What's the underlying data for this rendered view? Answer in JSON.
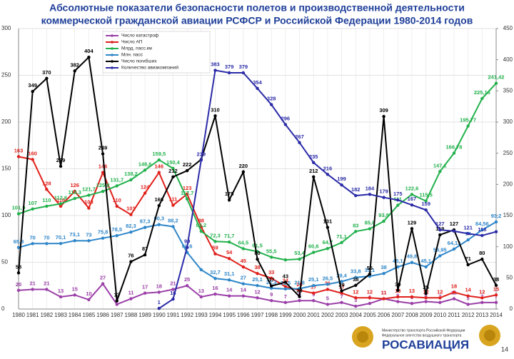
{
  "chart_data": {
    "type": "line",
    "title": [
      "Абсолютные показатели безопасности полетов и производственной деятельности",
      "коммерческой гражданской авиации РСФСР и Российской Федерации 1980-2014 годов"
    ],
    "categories": [
      "1980",
      "1981",
      "1982",
      "1983",
      "1984",
      "1985",
      "1986",
      "1987",
      "1988",
      "1989",
      "1990",
      "1991",
      "1992",
      "1993",
      "1994",
      "1995",
      "1996",
      "1997",
      "1998",
      "1999",
      "2000",
      "2001",
      "2002",
      "2003",
      "2004",
      "2005",
      "2006",
      "2007",
      "2008",
      "2009",
      "2010",
      "2011",
      "2012",
      "2013",
      "2014"
    ],
    "ylim": [
      0,
      300
    ],
    "yticks": [
      0,
      50,
      100,
      150,
      200,
      250,
      300
    ],
    "y2lim": [
      0,
      450
    ],
    "y2ticks": [
      0,
      50,
      100,
      150,
      200,
      250,
      300,
      350,
      400,
      450
    ],
    "grid": true,
    "legend": "upper left",
    "series": [
      {
        "name": "Число катастроф",
        "color": "#9b3fa8",
        "values": [
          20,
          21,
          21,
          13,
          15,
          10,
          27,
          5,
          11,
          17,
          18,
          21,
          25,
          13,
          16,
          14,
          14,
          12,
          9,
          7,
          9,
          9,
          5,
          7,
          3,
          6,
          11,
          8,
          6,
          8,
          7,
          11,
          5,
          7,
          7
        ]
      },
      {
        "name": "Число АП",
        "color": "#e0201b",
        "values": [
          163,
          160,
          128,
          110,
          126,
          108,
          146,
          110,
          101,
          124,
          146,
          111,
          123,
          88,
          59,
          54,
          45,
          38,
          33,
          24,
          20,
          17,
          21,
          17,
          12,
          12,
          11,
          13,
          13,
          12,
          12,
          18,
          14,
          12,
          15
        ]
      },
      {
        "name": "Млрд. пасс.км",
        "color": "#22b14c",
        "values": [
          101.9,
          107,
          110,
          112.6,
          118.3,
          121.7,
          125.8,
          131.7,
          138.2,
          148.6,
          159.5,
          150.4,
          117.7,
          83.2,
          72.3,
          71.7,
          64.5,
          61.5,
          55.5,
          52.6,
          53.4,
          60.6,
          64.7,
          71.1,
          83,
          85.8,
          93.9,
          111,
          122.6,
          115.5,
          147.1,
          166.78,
          195.77,
          225.16,
          241.42
        ],
        "value_labels": [
          "101,9",
          "107",
          "110",
          "112,6",
          "118,3",
          "121,7",
          "125,8",
          "131,7",
          "138,2",
          "148,6",
          "159,5",
          "150,4",
          "117,7",
          "83,2",
          "72,3",
          "71,7",
          "64,5",
          "61,5",
          "55,5",
          null,
          "53,4",
          "60,6",
          "64,7",
          "71,1",
          "83",
          "85,8",
          "93,9",
          "111",
          "122,6",
          "115,5",
          "147,1",
          "166,78",
          "195,77",
          "225,16",
          "241,42"
        ]
      },
      {
        "name": "Млн. пасс",
        "color": "#2e86c9",
        "values": [
          65.8,
          70,
          70,
          70.1,
          73.1,
          73,
          75.8,
          78.5,
          82.3,
          87.3,
          90.3,
          88.2,
          60.6,
          42,
          32.7,
          31.1,
          27,
          25.1,
          22.3,
          21.5,
          21.8,
          25.1,
          26.5,
          29.4,
          33.8,
          35.1,
          38,
          45.1,
          49.8,
          45.1,
          56.95,
          64.13,
          74,
          84.56,
          93.2
        ],
        "value_labels": [
          "65,8",
          "70",
          "70",
          "70,1",
          "73,1",
          "73",
          "75,8",
          "78,5",
          "82,3",
          "87,3",
          "90,3",
          "88,2",
          "60,6",
          null,
          "32,7",
          "31,1",
          "27",
          "25,1",
          "22,3",
          "21,5",
          "21,8",
          "25,1",
          "26,5",
          "29,4",
          "33,8",
          "35,1",
          "38",
          "45,1",
          "49,8",
          "45,1",
          "56,95",
          "64,13",
          "74",
          "84,56",
          "93,2"
        ]
      },
      {
        "name": "Число погибших",
        "color": "#000000",
        "axis": "y2",
        "values": [
          58,
          349,
          370,
          229,
          382,
          404,
          249,
          13,
          76,
          87,
          166,
          212,
          222,
          240,
          310,
          175,
          220,
          80,
          37,
          43,
          20,
          212,
          131,
          29,
          38,
          56,
          309,
          30,
          129,
          25,
          119,
          127,
          71,
          80,
          38
        ],
        "value_labels": [
          "58",
          "349",
          "370",
          "229",
          "382",
          "404",
          "249",
          "13",
          "76",
          "87",
          "166",
          "212",
          "222",
          null,
          "310",
          "175",
          "220",
          "80",
          "37",
          "43",
          "20",
          "212",
          "131",
          "29",
          "38",
          "56",
          "309",
          "30",
          "129",
          "25",
          "119",
          "127",
          "71",
          "80",
          "38"
        ]
      },
      {
        "name": "Количество авиакомпаний",
        "color": "#2b2ba8",
        "axis": "y2",
        "values": [
          null,
          null,
          null,
          null,
          null,
          null,
          null,
          null,
          null,
          null,
          1,
          16,
          99,
          239,
          383,
          379,
          379,
          354,
          328,
          296,
          267,
          235,
          216,
          199,
          182,
          184,
          179,
          175,
          167,
          159,
          127,
          125,
          121,
          118,
          124
        ],
        "value_labels": [
          null,
          null,
          null,
          null,
          null,
          null,
          null,
          null,
          null,
          null,
          "1",
          "16",
          "99",
          "239",
          "383",
          "379",
          "379",
          "354",
          "328",
          "296",
          "267",
          "235",
          "216",
          "199",
          "182",
          "184",
          "179",
          "175",
          "167",
          "159",
          "127",
          null,
          "121",
          "118",
          null
        ]
      }
    ]
  },
  "footer": {
    "ministry": "Министерство транспорта Российской Федерации",
    "agency": "Федеральное агентство воздушного транспорта",
    "logo": "РОСАВИАЦИЯ",
    "page": "14"
  }
}
